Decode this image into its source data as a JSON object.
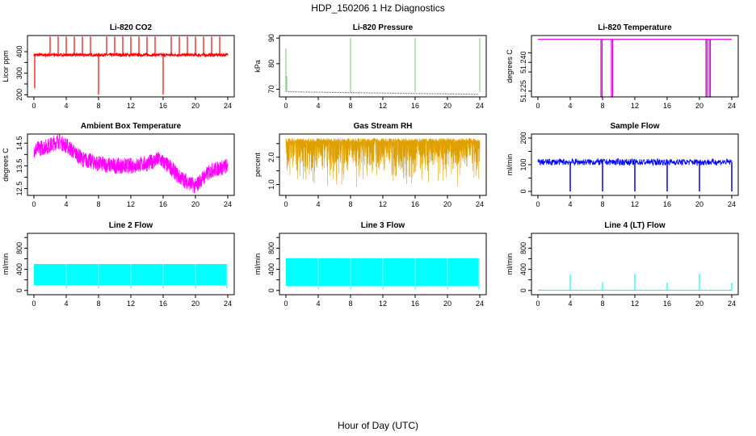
{
  "figure": {
    "title": "HDP_150206  1 Hz Diagnostics",
    "xlabel": "Hour of Day (UTC)"
  },
  "chart_data": [
    {
      "type": "line",
      "title": "Li-820 CO2",
      "ylabel": "Licor ppm",
      "xlim": [
        0,
        24
      ],
      "ylim": [
        190,
        475
      ],
      "xticks": [
        "0",
        "4",
        "8",
        "12",
        "16",
        "20",
        "24"
      ],
      "yticks": [
        200,
        250,
        300,
        350,
        400
      ],
      "ytick_labels": [
        "200",
        "",
        "300",
        "",
        "400"
      ],
      "color": "#ff0000",
      "baseline": 385,
      "noise": 6,
      "x": [
        0,
        0.1,
        0.2,
        2,
        3,
        4,
        5,
        6,
        7,
        8,
        8.1,
        9,
        10,
        11,
        12,
        13,
        14,
        15,
        16,
        16.1,
        17,
        18,
        19,
        20,
        21,
        22,
        23,
        24
      ],
      "y": [
        385,
        230,
        385,
        470,
        470,
        470,
        470,
        470,
        470,
        200,
        385,
        470,
        470,
        470,
        470,
        470,
        470,
        470,
        200,
        385,
        470,
        470,
        470,
        470,
        470,
        470,
        470,
        385
      ]
    },
    {
      "type": "line",
      "title": "Li-820 Pressure",
      "ylabel": "kPa",
      "xlim": [
        0,
        24
      ],
      "ylim": [
        67,
        91
      ],
      "xticks": [
        "0",
        "4",
        "8",
        "12",
        "16",
        "20",
        "24"
      ],
      "yticks": [
        70,
        80,
        90
      ],
      "ytick_labels": [
        "70",
        "80",
        "90"
      ],
      "color": "#00b000",
      "x": [
        0,
        0.1,
        0.3,
        8,
        16,
        23.9,
        24
      ],
      "y": [
        86,
        75,
        69,
        90,
        90,
        68,
        90
      ]
    },
    {
      "type": "line",
      "title": "Li-820 Temperature",
      "ylabel": "degrees C",
      "xlim": [
        0,
        24
      ],
      "ylim": [
        51.222,
        51.254
      ],
      "xticks": [
        "0",
        "4",
        "8",
        "12",
        "16",
        "20",
        "24"
      ],
      "yticks": [
        51.225,
        51.235,
        51.24,
        51.245
      ],
      "ytick_labels": [
        "51.225",
        "",
        "51.240",
        ""
      ],
      "color": "#e000e0",
      "baseline": 51.252,
      "dips_x": [
        7.8,
        9.1,
        20.8,
        21.2
      ],
      "dip_value": 51.222
    },
    {
      "type": "line",
      "title": "Ambient Box Temperature",
      "ylabel": "degrees C",
      "xlim": [
        0,
        24
      ],
      "ylim": [
        12.2,
        14.9
      ],
      "xticks": [
        "0",
        "4",
        "8",
        "12",
        "16",
        "20",
        "24"
      ],
      "yticks": [
        12.5,
        13.0,
        13.5,
        14.0,
        14.5
      ],
      "ytick_labels": [
        "12.5",
        "",
        "13.5",
        "",
        "14.5"
      ],
      "color": "#ff00ff",
      "noise": 0.35,
      "x": [
        0,
        2,
        3,
        4,
        6,
        8,
        10,
        12,
        14,
        15.5,
        17,
        18,
        19,
        20,
        21,
        22,
        23,
        24
      ],
      "y": [
        14.2,
        14.4,
        14.6,
        14.4,
        13.8,
        13.6,
        13.5,
        13.5,
        13.6,
        13.8,
        13.4,
        13.0,
        12.8,
        12.6,
        13.0,
        13.3,
        13.4,
        13.5
      ]
    },
    {
      "type": "line",
      "title": "Gas Stream RH",
      "ylabel": "percent",
      "xlim": [
        0,
        24
      ],
      "ylim": [
        0.6,
        2.85
      ],
      "xticks": [
        "0",
        "4",
        "8",
        "12",
        "16",
        "20",
        "24"
      ],
      "yticks": [
        1.0,
        1.5,
        2.0,
        2.5
      ],
      "ytick_labels": [
        "1.0",
        "",
        "2.0",
        ""
      ],
      "color": "#e0a000",
      "band_top": 2.7,
      "band_bottom": 1.0,
      "noise": 0.8
    },
    {
      "type": "line",
      "title": "Sample Flow",
      "ylabel": "ml/min",
      "xlim": [
        0,
        24
      ],
      "ylim": [
        -15,
        215
      ],
      "xticks": [
        "0",
        "4",
        "8",
        "12",
        "16",
        "20",
        "24"
      ],
      "yticks": [
        0,
        50,
        100,
        150,
        200
      ],
      "ytick_labels": [
        "0",
        "",
        "100",
        "",
        "200"
      ],
      "color": "#0000ff",
      "baseline": 110,
      "noise": 12,
      "dips_x": [
        4,
        8,
        12,
        16,
        20,
        24
      ],
      "dip_value": 0
    },
    {
      "type": "area",
      "title": "Line 2 Flow",
      "ylabel": "ml/min",
      "xlim": [
        0,
        24
      ],
      "ylim": [
        -80,
        1080
      ],
      "xticks": [
        "0",
        "4",
        "8",
        "12",
        "16",
        "20",
        "24"
      ],
      "yticks": [
        0,
        200,
        400,
        600,
        800,
        1000
      ],
      "ytick_labels": [
        "0",
        "",
        "400",
        "",
        "800",
        ""
      ],
      "color": "#00ffff",
      "band_top": 500,
      "band_bottom": 100,
      "gaps_x": [
        4,
        8,
        12,
        16,
        20,
        23.9
      ]
    },
    {
      "type": "area",
      "title": "Line 3 Flow",
      "ylabel": "ml/min",
      "xlim": [
        0,
        24
      ],
      "ylim": [
        -80,
        1080
      ],
      "xticks": [
        "0",
        "4",
        "8",
        "12",
        "16",
        "20",
        "24"
      ],
      "yticks": [
        0,
        200,
        400,
        600,
        800,
        1000
      ],
      "ytick_labels": [
        "0",
        "",
        "400",
        "",
        "800",
        ""
      ],
      "color": "#00ffff",
      "band_top": 610,
      "band_bottom": 80,
      "gaps_x": [
        4,
        8,
        12,
        16,
        20,
        23.9
      ]
    },
    {
      "type": "line",
      "title": "Line 4 (LT) Flow",
      "ylabel": "ml/min",
      "xlim": [
        0,
        24
      ],
      "ylim": [
        -80,
        1080
      ],
      "xticks": [
        "0",
        "4",
        "8",
        "12",
        "16",
        "20",
        "24"
      ],
      "yticks": [
        0,
        200,
        400,
        600,
        800,
        1000
      ],
      "ytick_labels": [
        "0",
        "",
        "400",
        "",
        "800",
        ""
      ],
      "color": "#00ffff",
      "baseline": 5,
      "spikes_x": [
        4,
        8,
        12,
        16,
        20,
        24
      ],
      "spikes_y": [
        300,
        160,
        310,
        150,
        310,
        150
      ]
    }
  ]
}
